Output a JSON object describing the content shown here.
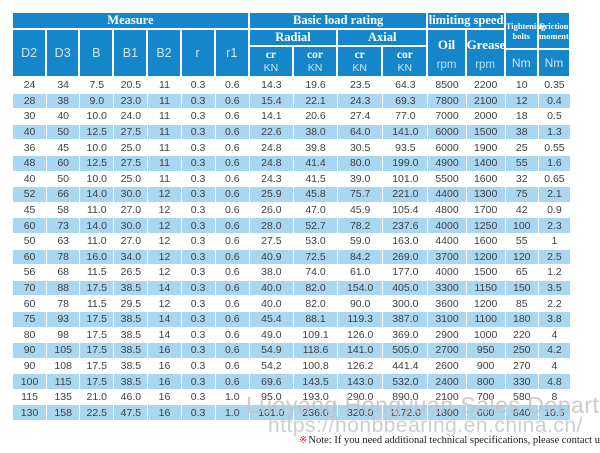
{
  "colors": {
    "header_blue": "#1586c9",
    "row_alt": "#a9d6f1",
    "watermark_gray": "#c3c3c3",
    "note_red": "#d93030",
    "data_text": "#404040"
  },
  "table": {
    "header": {
      "measure": "Measure",
      "basic_load_rating": "Basic load rating",
      "limiting_speed": "limiting speed",
      "radial": "Radial",
      "axial": "Axial",
      "oil": "Oil",
      "grease": "Grease",
      "rpm": "rpm",
      "nm": "Nm",
      "cr": "cr",
      "cor": "cor",
      "kn": "KN",
      "tightening_line1": "Tightening",
      "tightening_line2": "bolts",
      "friction_line1": "Friction",
      "friction_line2": "moment",
      "measure_columns": [
        "D2",
        "D3",
        "B",
        "B1",
        "B2",
        "r",
        "r1"
      ]
    },
    "rows": [
      [
        "24",
        "34",
        "7.5",
        "20.5",
        "11",
        "0.3",
        "0.6",
        "14.3",
        "19.6",
        "23.5",
        "64.3",
        "8500",
        "2200",
        "10",
        "0.35"
      ],
      [
        "28",
        "38",
        "9.0",
        "23.0",
        "11",
        "0.3",
        "0.6",
        "15.4",
        "22.1",
        "24.3",
        "69.3",
        "7800",
        "2100",
        "12",
        "0.4"
      ],
      [
        "30",
        "40",
        "10.0",
        "24.0",
        "11",
        "0.3",
        "0.6",
        "14.1",
        "20.6",
        "27.4",
        "77.0",
        "7000",
        "2000",
        "18",
        "0.5"
      ],
      [
        "40",
        "50",
        "12.5",
        "27.5",
        "11",
        "0.3",
        "0.6",
        "22.6",
        "38.0",
        "64.0",
        "141.0",
        "6000",
        "1500",
        "38",
        "1.3"
      ],
      [
        "36",
        "45",
        "10.0",
        "25.0",
        "11",
        "0.3",
        "0.6",
        "24.8",
        "39.8",
        "30.5",
        "93.5",
        "6000",
        "1900",
        "25",
        "0.55"
      ],
      [
        "48",
        "60",
        "12.5",
        "27.5",
        "11",
        "0.3",
        "0.6",
        "24.8",
        "41.4",
        "80.0",
        "199.0",
        "4900",
        "1400",
        "55",
        "1.6"
      ],
      [
        "40",
        "50",
        "10.0",
        "25.0",
        "11",
        "0.3",
        "0.6",
        "24.3",
        "41.5",
        "39.0",
        "101.0",
        "5500",
        "1600",
        "32",
        "0.65"
      ],
      [
        "52",
        "66",
        "14.0",
        "30.0",
        "12",
        "0.3",
        "0.6",
        "25.9",
        "45.8",
        "75.7",
        "221.0",
        "4400",
        "1300",
        "75",
        "2.1"
      ],
      [
        "45",
        "58",
        "11.0",
        "27.0",
        "12",
        "0.3",
        "0.6",
        "26.0",
        "47.0",
        "45.9",
        "105.4",
        "4800",
        "1700",
        "42",
        "0.9"
      ],
      [
        "60",
        "73",
        "14.0",
        "30.0",
        "12",
        "0.3",
        "0.6",
        "28.0",
        "52.7",
        "78.2",
        "237.6",
        "4000",
        "1250",
        "100",
        "2.3"
      ],
      [
        "50",
        "63",
        "11.0",
        "27.0",
        "12",
        "0.3",
        "0.6",
        "27.5",
        "53.0",
        "59.0",
        "163.0",
        "4400",
        "1600",
        "55",
        "1"
      ],
      [
        "60",
        "78",
        "16.0",
        "34.0",
        "12",
        "0.3",
        "0.6",
        "40.9",
        "72.5",
        "84.2",
        "269.0",
        "3700",
        "1200",
        "120",
        "2.5"
      ],
      [
        "56",
        "68",
        "11.5",
        "26.5",
        "12",
        "0.3",
        "0.6",
        "38.0",
        "74.0",
        "61.0",
        "177.0",
        "4000",
        "1500",
        "65",
        "1.2"
      ],
      [
        "70",
        "88",
        "17.5",
        "38.5",
        "14",
        "0.3",
        "0.6",
        "40.0",
        "82.0",
        "154.0",
        "405.0",
        "3300",
        "1150",
        "150",
        "3.5"
      ],
      [
        "60",
        "78",
        "11.5",
        "29.5",
        "12",
        "0.3",
        "0.6",
        "40.0",
        "82.0",
        "90.0",
        "300.0",
        "3600",
        "1200",
        "85",
        "2.2"
      ],
      [
        "75",
        "93",
        "17.5",
        "38.5",
        "14",
        "0.3",
        "0.6",
        "45.4",
        "88.1",
        "119.3",
        "387.0",
        "3100",
        "1100",
        "180",
        "3.8"
      ],
      [
        "80",
        "98",
        "17.5",
        "38.5",
        "14",
        "0.3",
        "0.6",
        "49.0",
        "109.1",
        "126.0",
        "369.0",
        "2900",
        "1000",
        "220",
        "4"
      ],
      [
        "90",
        "105",
        "17.5",
        "38.5",
        "16",
        "0.3",
        "0.6",
        "54.9",
        "118.6",
        "141.0",
        "505.0",
        "2700",
        "950",
        "250",
        "4.2"
      ],
      [
        "90",
        "108",
        "17.5",
        "38.5",
        "16",
        "0.3",
        "0.6",
        "54.2",
        "100.8",
        "126.2",
        "441.4",
        "2600",
        "900",
        "270",
        "4"
      ],
      [
        "100",
        "115",
        "17.5",
        "38.5",
        "16",
        "0.3",
        "0.6",
        "69.6",
        "143.5",
        "143.0",
        "532.0",
        "2400",
        "800",
        "330",
        "4.8"
      ],
      [
        "115",
        "135",
        "21.0",
        "46.0",
        "16",
        "0.3",
        "1.0",
        "95.0",
        "193.0",
        "290.0",
        "890.0",
        "2100",
        "700",
        "580",
        "8"
      ],
      [
        "130",
        "158",
        "22.5",
        "47.5",
        "16",
        "0.3",
        "1.0",
        "101.0",
        "236.0",
        "320.0",
        "1172.0",
        "1800",
        "600",
        "840",
        "10.5"
      ]
    ]
  },
  "watermark": {
    "line1": "Luoyang Hongyuan Sales Department",
    "line2": "https://honbbearing.en.china.cn/"
  },
  "note": {
    "symbol": "※",
    "text": "Note: If you need additional technical specifications, please contact us"
  }
}
